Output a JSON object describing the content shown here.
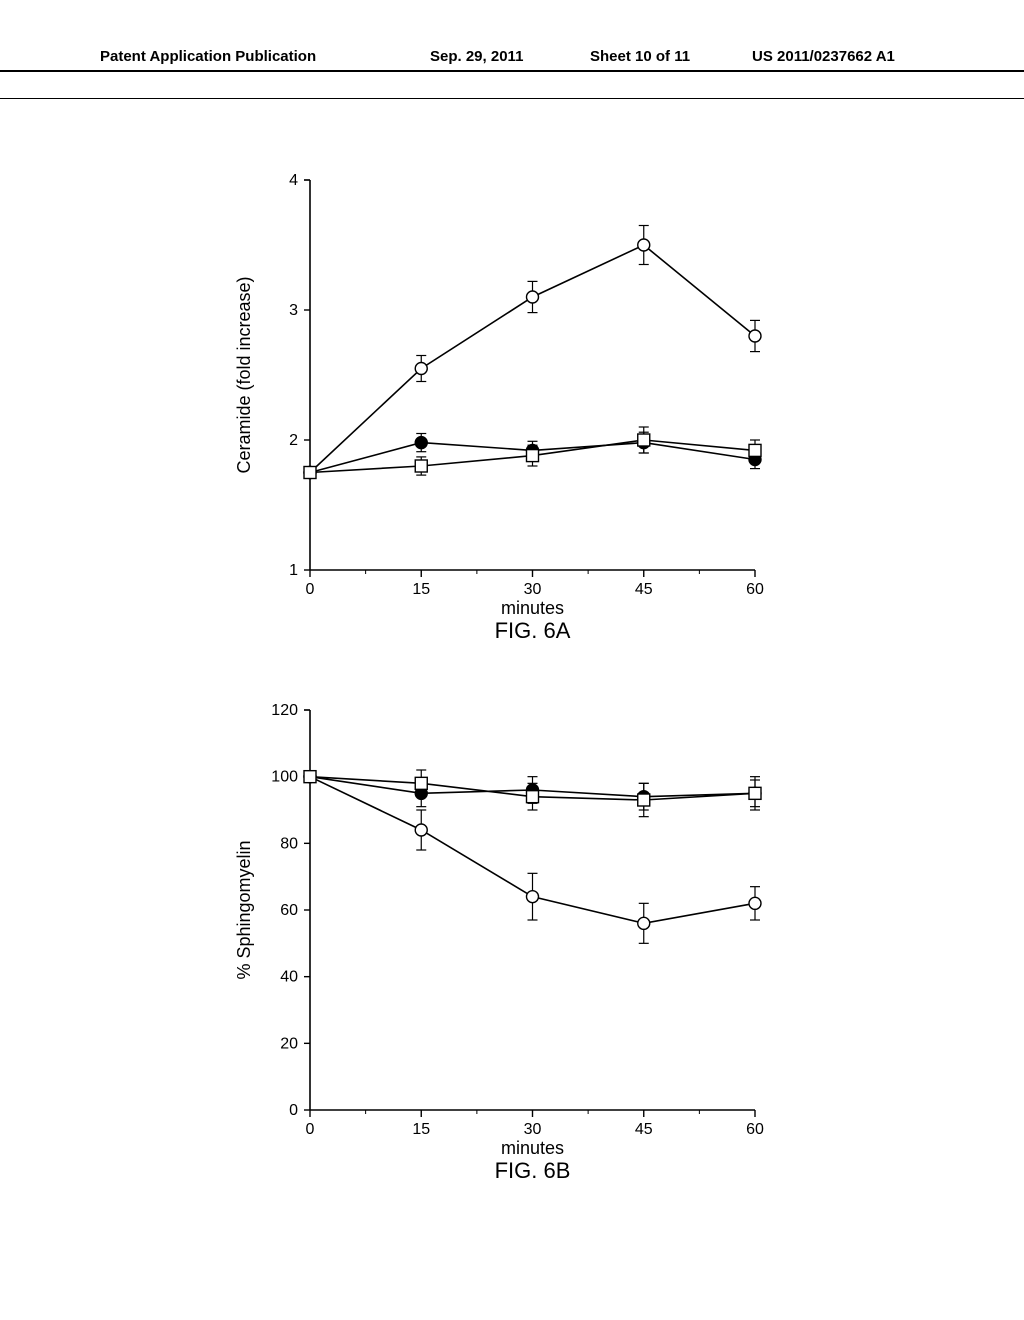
{
  "header": {
    "left": "Patent Application Publication",
    "mid": "Sep. 29, 2011",
    "sheet": "Sheet 10 of 11",
    "right": "US 2011/0237662 A1"
  },
  "chartA": {
    "type": "line",
    "x_label": "minutes",
    "y_label": "Ceramide (fold increase)",
    "xlim": [
      0,
      60
    ],
    "xtick_step": 15,
    "ylim": [
      1,
      4
    ],
    "ytick_step": 1,
    "fig_caption": "FIG. 6A",
    "axis_color": "#000000",
    "text_color": "#000000",
    "background_color": "#ffffff",
    "label_fontsize": 18,
    "tick_fontsize": 16,
    "line_width": 1.6,
    "marker_size": 6,
    "series": [
      {
        "marker": "circle-open",
        "x": [
          0,
          15,
          30,
          45,
          60
        ],
        "y": [
          1.75,
          2.55,
          3.1,
          3.5,
          2.8
        ],
        "err": [
          0,
          0.1,
          0.12,
          0.15,
          0.12
        ],
        "stroke": "#000000",
        "fill": "#ffffff"
      },
      {
        "marker": "circle-solid",
        "x": [
          0,
          15,
          30,
          45,
          60
        ],
        "y": [
          1.75,
          1.98,
          1.92,
          1.98,
          1.85
        ],
        "err": [
          0,
          0.07,
          0.07,
          0.08,
          0.07
        ],
        "stroke": "#000000",
        "fill": "#000000"
      },
      {
        "marker": "square-open",
        "x": [
          0,
          15,
          30,
          45,
          60
        ],
        "y": [
          1.75,
          1.8,
          1.88,
          2.0,
          1.92
        ],
        "err": [
          0,
          0.07,
          0.08,
          0.1,
          0.08
        ],
        "stroke": "#000000",
        "fill": "#ffffff"
      }
    ]
  },
  "chartB": {
    "type": "line",
    "x_label": "minutes",
    "y_label": "% Sphingomyelin",
    "xlim": [
      0,
      60
    ],
    "xtick_step": 15,
    "ylim": [
      0,
      120
    ],
    "ytick_step": 20,
    "fig_caption": "FIG. 6B",
    "axis_color": "#000000",
    "text_color": "#000000",
    "background_color": "#ffffff",
    "label_fontsize": 18,
    "tick_fontsize": 16,
    "line_width": 1.6,
    "marker_size": 6,
    "series": [
      {
        "marker": "circle-open",
        "x": [
          0,
          15,
          30,
          45,
          60
        ],
        "y": [
          100,
          84,
          64,
          56,
          62
        ],
        "err": [
          0,
          6,
          7,
          6,
          5
        ],
        "stroke": "#000000",
        "fill": "#ffffff"
      },
      {
        "marker": "circle-solid",
        "x": [
          0,
          15,
          30,
          45,
          60
        ],
        "y": [
          100,
          95,
          96,
          94,
          95
        ],
        "err": [
          0,
          4,
          4,
          4,
          4
        ],
        "stroke": "#000000",
        "fill": "#000000"
      },
      {
        "marker": "square-open",
        "x": [
          0,
          15,
          30,
          45,
          60
        ],
        "y": [
          100,
          98,
          94,
          93,
          95
        ],
        "err": [
          0,
          4,
          4,
          5,
          5
        ],
        "stroke": "#000000",
        "fill": "#ffffff"
      }
    ]
  }
}
